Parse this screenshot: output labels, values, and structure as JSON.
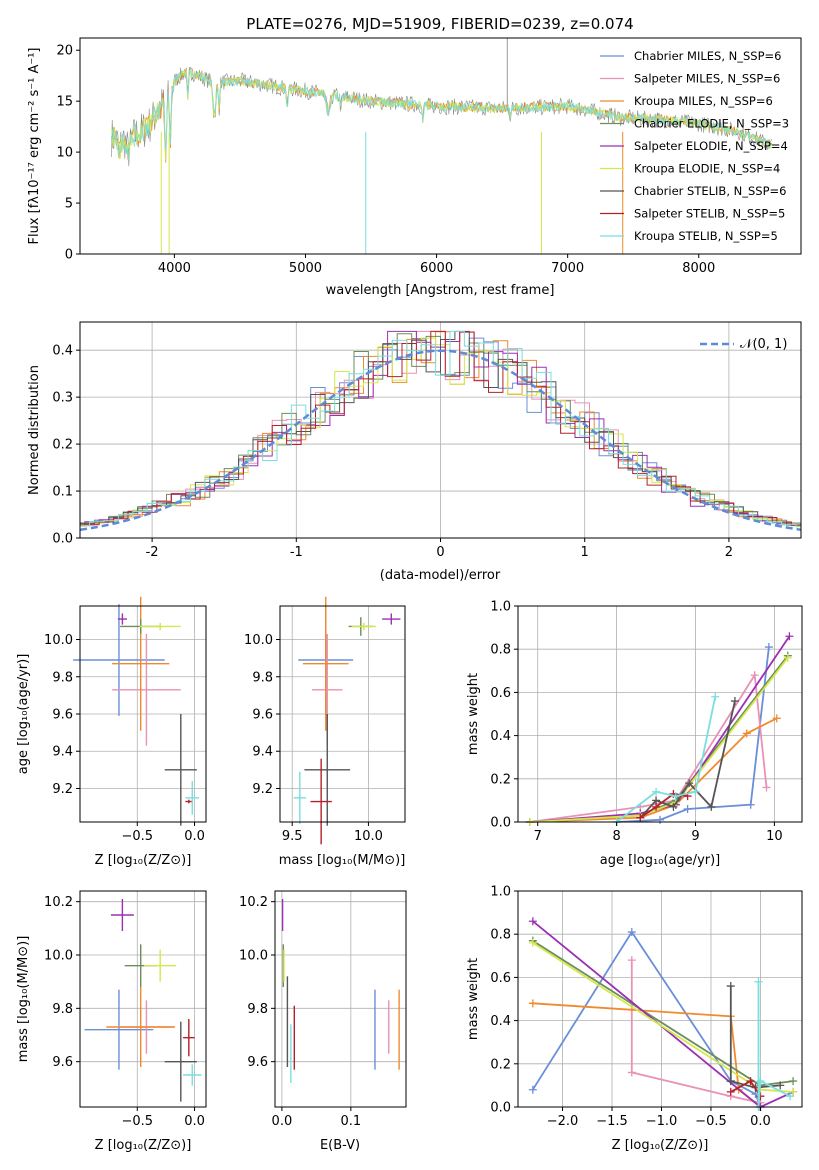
{
  "chart_data": [
    {
      "id": "spectrum",
      "type": "line",
      "title": "PLATE=0276, MJD=51909, FIBERID=0239, z=0.074",
      "xlabel": "wavelength [Angstrom, rest frame]",
      "ylabel": "Flux [fλ10⁻¹⁷ erg cm⁻² s⁻¹ A⁻¹]",
      "xlim": [
        3280,
        8780
      ],
      "ylim": [
        0,
        21.2
      ],
      "xticks": [
        4000,
        5000,
        6000,
        7000,
        8000
      ],
      "yticks": [
        0,
        5,
        10,
        15,
        20
      ],
      "grid": false,
      "legend_position": "top-right",
      "legend": [
        {
          "label": "Chabrier MILES, N_SSP=6",
          "color": "#6a8fd8"
        },
        {
          "label": "Salpeter MILES, N_SSP=6",
          "color": "#e991b6"
        },
        {
          "label": "Kroupa MILES, N_SSP=6",
          "color": "#f08a2c"
        },
        {
          "label": "Chabrier ELODIE, N_SSP=3",
          "color": "#6b8e5a"
        },
        {
          "label": "Salpeter ELODIE, N_SSP=4",
          "color": "#9b30b3"
        },
        {
          "label": "Kroupa ELODIE, N_SSP=4",
          "color": "#d4e84a"
        },
        {
          "label": "Chabrier STELIB, N_SSP=6",
          "color": "#555555"
        },
        {
          "label": "Salpeter STELIB, N_SSP=5",
          "color": "#b5202a"
        },
        {
          "label": "Kroupa STELIB, N_SSP=5",
          "color": "#79dede"
        }
      ],
      "series_colors": [
        "#7f7f7f",
        "#f08a2c",
        "#d4e84a",
        "#79dede"
      ],
      "continuum_x": [
        3520,
        3650,
        3800,
        3900,
        4000,
        4100,
        4300,
        4500,
        5000,
        5500,
        6000,
        6500,
        7000,
        7200,
        7400,
        7700,
        8000,
        8300,
        8550
      ],
      "continuum_y": [
        11.5,
        11.2,
        12.5,
        14.5,
        17.0,
        18.0,
        16.8,
        17.0,
        16.0,
        15.0,
        14.5,
        14.3,
        14.5,
        14.0,
        13.4,
        13.2,
        12.8,
        12.0,
        10.7
      ]
    },
    {
      "id": "residuals",
      "type": "line",
      "xlabel": "(data-model)/error",
      "ylabel": "Normed distribution",
      "xlim": [
        -2.5,
        2.5
      ],
      "ylim": [
        0,
        0.46
      ],
      "xticks": [
        -2,
        -1,
        0,
        1,
        2
      ],
      "yticks": [
        0.0,
        0.1,
        0.2,
        0.3,
        0.4
      ],
      "grid": true,
      "legend_position": "top-right",
      "legend": [
        {
          "label": "𝒩(0, 1)",
          "color": "#5b8bd9"
        }
      ],
      "bin_width": 0.1,
      "reference_curve": "normal pdf, mean 0, sigma 1"
    },
    {
      "id": "age_vs_Z",
      "type": "scatter",
      "xlabel": "Z [log₁₀(Z/Z⊙)]",
      "ylabel": "age  [log₁₀(age/yr)]",
      "xlim": [
        -1.0,
        0.1
      ],
      "ylim": [
        9.02,
        10.18
      ],
      "xticks": [
        -0.5,
        0.0
      ],
      "yticks": [
        9.2,
        9.4,
        9.6,
        9.8,
        10.0
      ],
      "grid": true,
      "points": [
        {
          "color": "#6a8fd8",
          "x": -0.66,
          "y": 9.89,
          "xerr": 0.4,
          "yerr": 0.3
        },
        {
          "color": "#e991b6",
          "x": -0.42,
          "y": 9.73,
          "xerr": 0.3,
          "yerr": 0.3
        },
        {
          "color": "#f08a2c",
          "x": -0.47,
          "y": 9.87,
          "xerr": 0.25,
          "yerr": 0.36
        },
        {
          "color": "#6b8e5a",
          "x": -0.47,
          "y": 10.07,
          "xerr": 0.18,
          "yerr": 0.04
        },
        {
          "color": "#9b30b3",
          "x": -0.63,
          "y": 10.11,
          "xerr": 0.04,
          "yerr": 0.03
        },
        {
          "color": "#d4e84a",
          "x": -0.3,
          "y": 10.07,
          "xerr": 0.18,
          "yerr": 0.02
        },
        {
          "color": "#555555",
          "x": -0.12,
          "y": 9.3,
          "xerr": 0.14,
          "yerr": 0.3
        },
        {
          "color": "#b5202a",
          "x": -0.05,
          "y": 9.13,
          "xerr": 0.03,
          "yerr": 0.01
        },
        {
          "color": "#79dede",
          "x": -0.02,
          "y": 9.15,
          "xerr": 0.06,
          "yerr": 0.09
        }
      ]
    },
    {
      "id": "age_vs_mass",
      "type": "scatter",
      "xlabel": "mass [log₁₀(M/M⊙)]",
      "ylabel": "",
      "xlim": [
        9.42,
        10.24
      ],
      "ylim": [
        9.02,
        10.18
      ],
      "xticks": [
        9.5,
        10.0
      ],
      "yticks": [
        9.2,
        9.4,
        9.6,
        9.8,
        10.0
      ],
      "grid": true,
      "points": [
        {
          "color": "#6a8fd8",
          "x": 9.72,
          "y": 9.89,
          "xerr": 0.18,
          "yerr": 0.3
        },
        {
          "color": "#e991b6",
          "x": 9.73,
          "y": 9.73,
          "xerr": 0.1,
          "yerr": 0.3
        },
        {
          "color": "#f08a2c",
          "x": 9.72,
          "y": 9.87,
          "xerr": 0.15,
          "yerr": 0.36
        },
        {
          "color": "#6b8e5a",
          "x": 9.95,
          "y": 10.07,
          "xerr": 0.08,
          "yerr": 0.05
        },
        {
          "color": "#9b30b3",
          "x": 10.15,
          "y": 10.11,
          "xerr": 0.06,
          "yerr": 0.03
        },
        {
          "color": "#d4e84a",
          "x": 9.97,
          "y": 10.07,
          "xerr": 0.08,
          "yerr": 0.02
        },
        {
          "color": "#555555",
          "x": 9.73,
          "y": 9.3,
          "xerr": 0.15,
          "yerr": 0.3
        },
        {
          "color": "#b5202a",
          "x": 9.69,
          "y": 9.13,
          "xerr": 0.07,
          "yerr": 0.23
        },
        {
          "color": "#79dede",
          "x": 9.55,
          "y": 9.15,
          "xerr": 0.04,
          "yerr": 0.14
        }
      ]
    },
    {
      "id": "weight_vs_age",
      "type": "line",
      "xlabel": "age  [log₁₀(age/yr)]",
      "ylabel": "mass weight",
      "xlim": [
        6.75,
        10.35
      ],
      "ylim": [
        0,
        1.0
      ],
      "xticks": [
        7,
        8,
        9,
        10
      ],
      "yticks": [
        0.0,
        0.2,
        0.4,
        0.6,
        0.8,
        1.0
      ],
      "grid": true,
      "series": [
        {
          "color": "#6a8fd8",
          "x": [
            8.0,
            8.55,
            8.9,
            9.7,
            9.93
          ],
          "y": [
            0.0,
            0.01,
            0.06,
            0.08,
            0.81
          ]
        },
        {
          "color": "#e991b6",
          "x": [
            6.9,
            8.3,
            8.75,
            9.75,
            9.9
          ],
          "y": [
            0.0,
            0.07,
            0.1,
            0.68,
            0.16
          ]
        },
        {
          "color": "#f08a2c",
          "x": [
            6.9,
            8.3,
            8.75,
            9.65,
            10.03
          ],
          "y": [
            0.0,
            0.02,
            0.08,
            0.41,
            0.48
          ]
        },
        {
          "color": "#6b8e5a",
          "x": [
            6.9,
            8.3,
            8.75,
            10.17
          ],
          "y": [
            0.0,
            0.03,
            0.1,
            0.77
          ]
        },
        {
          "color": "#9b30b3",
          "x": [
            6.9,
            8.3,
            8.75,
            10.19
          ],
          "y": [
            0.0,
            0.04,
            0.08,
            0.86
          ]
        },
        {
          "color": "#d4e84a",
          "x": [
            6.9,
            8.3,
            8.75,
            10.17
          ],
          "y": [
            0.0,
            0.03,
            0.09,
            0.76
          ]
        },
        {
          "color": "#555555",
          "x": [
            8.3,
            8.5,
            8.72,
            8.92,
            9.2,
            9.5
          ],
          "y": [
            0.02,
            0.1,
            0.07,
            0.18,
            0.07,
            0.56
          ]
        },
        {
          "color": "#b5202a",
          "x": [
            8.3,
            8.5,
            8.72,
            8.9
          ],
          "y": [
            0.02,
            0.07,
            0.13,
            0.12
          ]
        },
        {
          "color": "#79dede",
          "x": [
            8.0,
            8.5,
            8.75,
            9.0,
            9.25
          ],
          "y": [
            0.0,
            0.14,
            0.12,
            0.14,
            0.58
          ]
        }
      ]
    },
    {
      "id": "mass_vs_Z",
      "type": "scatter",
      "xlabel": "Z [log₁₀(Z/Z⊙)]",
      "ylabel": "mass [log₁₀(M/M⊙)]",
      "xlim": [
        -1.0,
        0.1
      ],
      "ylim": [
        9.43,
        10.24
      ],
      "xticks": [
        -0.5,
        0.0
      ],
      "yticks": [
        9.6,
        9.8,
        10.0,
        10.2
      ],
      "grid": true,
      "points": [
        {
          "color": "#6a8fd8",
          "x": -0.66,
          "y": 9.72,
          "xerr": 0.3,
          "yerr": 0.15
        },
        {
          "color": "#e991b6",
          "x": -0.42,
          "y": 9.73,
          "xerr": 0.23,
          "yerr": 0.1
        },
        {
          "color": "#f08a2c",
          "x": -0.47,
          "y": 9.73,
          "xerr": 0.3,
          "yerr": 0.15
        },
        {
          "color": "#6b8e5a",
          "x": -0.47,
          "y": 9.96,
          "xerr": 0.14,
          "yerr": 0.08
        },
        {
          "color": "#9b30b3",
          "x": -0.63,
          "y": 10.15,
          "xerr": 0.1,
          "yerr": 0.06
        },
        {
          "color": "#d4e84a",
          "x": -0.3,
          "y": 9.96,
          "xerr": 0.14,
          "yerr": 0.06
        },
        {
          "color": "#555555",
          "x": -0.12,
          "y": 9.6,
          "xerr": 0.14,
          "yerr": 0.15
        },
        {
          "color": "#b5202a",
          "x": -0.05,
          "y": 9.69,
          "xerr": 0.05,
          "yerr": 0.07
        },
        {
          "color": "#79dede",
          "x": -0.02,
          "y": 9.55,
          "xerr": 0.08,
          "yerr": 0.04
        }
      ]
    },
    {
      "id": "mass_vs_ebv",
      "type": "scatter",
      "xlabel": "E(B-V)",
      "ylabel": "",
      "xlim": [
        -0.01,
        0.18
      ],
      "ylim": [
        9.43,
        10.24
      ],
      "xticks": [
        0.0,
        0.1
      ],
      "yticks": [
        9.6,
        9.8,
        10.0,
        10.2
      ],
      "grid": true,
      "points": [
        {
          "color": "#6a8fd8",
          "x": 0.135,
          "y": 9.72,
          "xerr": 0,
          "yerr": 0.15
        },
        {
          "color": "#e991b6",
          "x": 0.155,
          "y": 9.73,
          "xerr": 0,
          "yerr": 0.1
        },
        {
          "color": "#f08a2c",
          "x": 0.17,
          "y": 9.72,
          "xerr": 0,
          "yerr": 0.15
        },
        {
          "color": "#6b8e5a",
          "x": 0.002,
          "y": 9.96,
          "xerr": 0,
          "yerr": 0.08
        },
        {
          "color": "#9b30b3",
          "x": 0.001,
          "y": 10.15,
          "xerr": 0,
          "yerr": 0.06
        },
        {
          "color": "#d4e84a",
          "x": 0.003,
          "y": 9.96,
          "xerr": 0,
          "yerr": 0.06
        },
        {
          "color": "#555555",
          "x": 0.008,
          "y": 9.75,
          "xerr": 0,
          "yerr": 0.17
        },
        {
          "color": "#b5202a",
          "x": 0.018,
          "y": 9.69,
          "xerr": 0,
          "yerr": 0.12
        },
        {
          "color": "#79dede",
          "x": 0.013,
          "y": 9.63,
          "xerr": 0,
          "yerr": 0.11
        }
      ]
    },
    {
      "id": "weight_vs_Z",
      "type": "line",
      "xlabel": "Z [log₁₀(Z/Z⊙)]",
      "ylabel": "mass weight",
      "xlim": [
        -2.45,
        0.42
      ],
      "ylim": [
        0,
        1.0
      ],
      "xticks": [
        -2.0,
        -1.5,
        -1.0,
        -0.5,
        0.0
      ],
      "yticks": [
        0.0,
        0.2,
        0.4,
        0.6,
        0.8,
        1.0
      ],
      "grid": true,
      "series": [
        {
          "color": "#6a8fd8",
          "x": [
            -2.3,
            -1.3,
            -0.3,
            -0.05,
            0.0
          ],
          "y": [
            0.08,
            0.81,
            0.12,
            0.06,
            0.0
          ]
        },
        {
          "color": "#e991b6",
          "x": [
            -1.3,
            -1.3,
            -0.3,
            0.0
          ],
          "y": [
            0.68,
            0.16,
            0.05,
            0.02
          ]
        },
        {
          "color": "#f08a2c",
          "x": [
            -2.3,
            -0.3,
            -0.22,
            0.0
          ],
          "y": [
            0.48,
            0.42,
            0.08,
            0.0
          ]
        },
        {
          "color": "#6b8e5a",
          "x": [
            -2.3,
            0.0,
            0.33
          ],
          "y": [
            0.77,
            0.1,
            0.12
          ]
        },
        {
          "color": "#9b30b3",
          "x": [
            -2.3,
            0.0,
            0.33
          ],
          "y": [
            0.86,
            0.0,
            0.07
          ]
        },
        {
          "color": "#d4e84a",
          "x": [
            -2.3,
            0.0,
            0.33
          ],
          "y": [
            0.76,
            0.08,
            0.07
          ]
        },
        {
          "color": "#555555",
          "x": [
            -0.3,
            -0.3,
            -0.05,
            0.2
          ],
          "y": [
            0.56,
            0.12,
            0.09,
            0.1
          ]
        },
        {
          "color": "#b5202a",
          "x": [
            -0.3,
            -0.1,
            0.0
          ],
          "y": [
            0.07,
            0.12,
            0.05
          ]
        },
        {
          "color": "#79dede",
          "x": [
            -0.02,
            -0.02,
            0.0,
            0.3
          ],
          "y": [
            0.58,
            0.0,
            0.12,
            0.05
          ]
        }
      ]
    }
  ]
}
